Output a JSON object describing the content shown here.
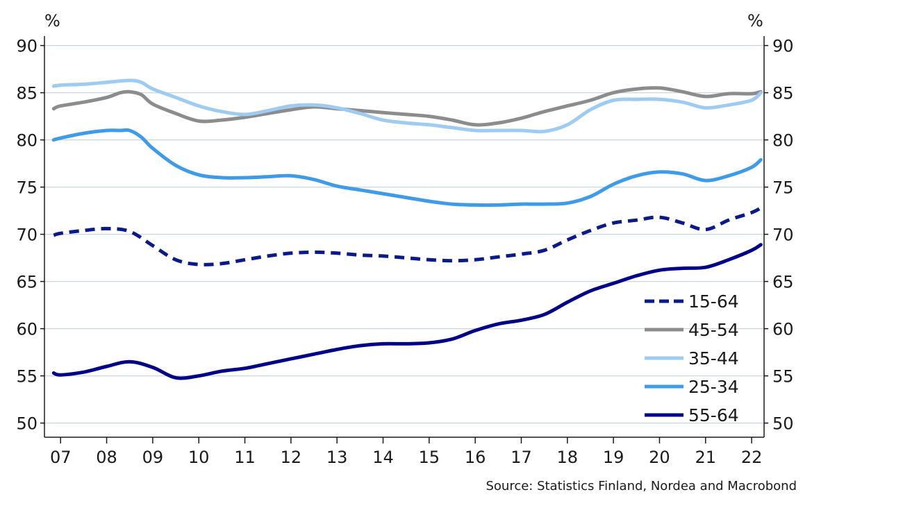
{
  "chart_data": {
    "type": "line",
    "title": "",
    "y_unit_left": "%",
    "y_unit_right": "%",
    "ylim": [
      48.5,
      91
    ],
    "yticks": [
      50,
      55,
      60,
      65,
      70,
      75,
      80,
      85,
      90
    ],
    "xlim": [
      2006.65,
      2022.27
    ],
    "xticks": [
      {
        "value": 2007,
        "label": "07"
      },
      {
        "value": 2008,
        "label": "08"
      },
      {
        "value": 2009,
        "label": "09"
      },
      {
        "value": 2010,
        "label": "10"
      },
      {
        "value": 2011,
        "label": "11"
      },
      {
        "value": 2012,
        "label": "12"
      },
      {
        "value": 2013,
        "label": "13"
      },
      {
        "value": 2014,
        "label": "14"
      },
      {
        "value": 2015,
        "label": "15"
      },
      {
        "value": 2016,
        "label": "16"
      },
      {
        "value": 2017,
        "label": "17"
      },
      {
        "value": 2018,
        "label": "18"
      },
      {
        "value": 2019,
        "label": "19"
      },
      {
        "value": 2020,
        "label": "20"
      },
      {
        "value": 2021,
        "label": "21"
      },
      {
        "value": 2022,
        "label": "22"
      }
    ],
    "grid": true,
    "legend_position": "bottom-right",
    "series": [
      {
        "name": "15-64",
        "color": "#0a1a8c",
        "dashed": true,
        "x": [
          2006.85,
          2007.0,
          2007.5,
          2008.0,
          2008.5,
          2009.0,
          2009.5,
          2010.0,
          2010.5,
          2011.0,
          2011.5,
          2012.0,
          2012.5,
          2013.0,
          2013.5,
          2014.0,
          2014.5,
          2015.0,
          2015.5,
          2016.0,
          2016.5,
          2017.0,
          2017.5,
          2018.0,
          2018.5,
          2019.0,
          2019.5,
          2020.0,
          2020.5,
          2021.0,
          2021.5,
          2022.0,
          2022.2
        ],
        "y": [
          69.9,
          70.1,
          70.4,
          70.6,
          70.3,
          68.8,
          67.3,
          66.8,
          66.9,
          67.3,
          67.7,
          68.0,
          68.1,
          68.0,
          67.8,
          67.7,
          67.5,
          67.3,
          67.2,
          67.3,
          67.6,
          67.9,
          68.3,
          69.4,
          70.4,
          71.2,
          71.5,
          71.8,
          71.2,
          70.5,
          71.5,
          72.3,
          72.8
        ]
      },
      {
        "name": "45-54",
        "color": "#8c8c8c",
        "dashed": false,
        "x": [
          2006.85,
          2007.0,
          2007.5,
          2008.0,
          2008.3,
          2008.5,
          2008.75,
          2009.0,
          2009.5,
          2010.0,
          2010.5,
          2011.0,
          2011.5,
          2012.0,
          2012.5,
          2013.0,
          2013.5,
          2014.0,
          2014.5,
          2015.0,
          2015.5,
          2016.0,
          2016.5,
          2017.0,
          2017.5,
          2018.0,
          2018.5,
          2019.0,
          2019.5,
          2020.0,
          2020.5,
          2021.0,
          2021.5,
          2022.0,
          2022.2
        ],
        "y": [
          83.3,
          83.6,
          84.0,
          84.5,
          85.0,
          85.1,
          84.8,
          83.8,
          82.8,
          82.0,
          82.1,
          82.4,
          82.8,
          83.2,
          83.5,
          83.3,
          83.1,
          82.9,
          82.7,
          82.5,
          82.1,
          81.6,
          81.8,
          82.3,
          83.0,
          83.6,
          84.2,
          85.0,
          85.4,
          85.5,
          85.1,
          84.6,
          84.9,
          84.9,
          85.1
        ]
      },
      {
        "name": "35-44",
        "color": "#9ecbf2",
        "dashed": false,
        "x": [
          2006.85,
          2007.0,
          2007.5,
          2008.0,
          2008.5,
          2008.75,
          2009.0,
          2009.5,
          2010.0,
          2010.5,
          2011.0,
          2011.5,
          2012.0,
          2012.5,
          2013.0,
          2013.5,
          2014.0,
          2014.5,
          2015.0,
          2015.5,
          2016.0,
          2016.5,
          2017.0,
          2017.5,
          2018.0,
          2018.5,
          2019.0,
          2019.5,
          2020.0,
          2020.5,
          2021.0,
          2021.5,
          2022.0,
          2022.2
        ],
        "y": [
          85.7,
          85.8,
          85.9,
          86.1,
          86.3,
          86.1,
          85.4,
          84.5,
          83.6,
          83.0,
          82.7,
          83.1,
          83.6,
          83.7,
          83.4,
          82.8,
          82.1,
          81.8,
          81.6,
          81.3,
          81.0,
          81.0,
          81.0,
          80.9,
          81.6,
          83.2,
          84.2,
          84.3,
          84.3,
          84.0,
          83.4,
          83.7,
          84.2,
          85.0
        ]
      },
      {
        "name": "25-34",
        "color": "#3d9be9",
        "dashed": false,
        "x": [
          2006.85,
          2007.0,
          2007.5,
          2008.0,
          2008.3,
          2008.5,
          2008.75,
          2009.0,
          2009.5,
          2010.0,
          2010.5,
          2011.0,
          2011.5,
          2012.0,
          2012.5,
          2013.0,
          2013.5,
          2014.0,
          2014.5,
          2015.0,
          2015.5,
          2016.0,
          2016.5,
          2017.0,
          2017.5,
          2018.0,
          2018.5,
          2019.0,
          2019.5,
          2020.0,
          2020.5,
          2021.0,
          2021.5,
          2022.0,
          2022.2
        ],
        "y": [
          80.0,
          80.2,
          80.7,
          81.0,
          81.0,
          81.0,
          80.3,
          79.1,
          77.3,
          76.3,
          76.0,
          76.0,
          76.1,
          76.2,
          75.8,
          75.1,
          74.7,
          74.3,
          73.9,
          73.5,
          73.2,
          73.1,
          73.1,
          73.2,
          73.2,
          73.3,
          74.0,
          75.3,
          76.2,
          76.6,
          76.4,
          75.7,
          76.2,
          77.1,
          77.9
        ]
      },
      {
        "name": "55-64",
        "color": "#00008b",
        "dashed": false,
        "x": [
          2006.85,
          2007.0,
          2007.5,
          2008.0,
          2008.5,
          2009.0,
          2009.5,
          2010.0,
          2010.5,
          2011.0,
          2011.5,
          2012.0,
          2012.5,
          2013.0,
          2013.5,
          2014.0,
          2014.5,
          2015.0,
          2015.5,
          2016.0,
          2016.5,
          2017.0,
          2017.5,
          2018.0,
          2018.5,
          2019.0,
          2019.5,
          2020.0,
          2020.5,
          2021.0,
          2021.5,
          2022.0,
          2022.2
        ],
        "y": [
          55.3,
          55.1,
          55.4,
          56.0,
          56.5,
          55.9,
          54.8,
          55.0,
          55.5,
          55.8,
          56.3,
          56.8,
          57.3,
          57.8,
          58.2,
          58.4,
          58.4,
          58.5,
          58.9,
          59.8,
          60.5,
          60.9,
          61.5,
          62.8,
          64.0,
          64.8,
          65.6,
          66.2,
          66.4,
          66.5,
          67.3,
          68.3,
          68.9
        ]
      }
    ]
  },
  "source": "Source: Statistics Finland, Nordea and Macrobond"
}
